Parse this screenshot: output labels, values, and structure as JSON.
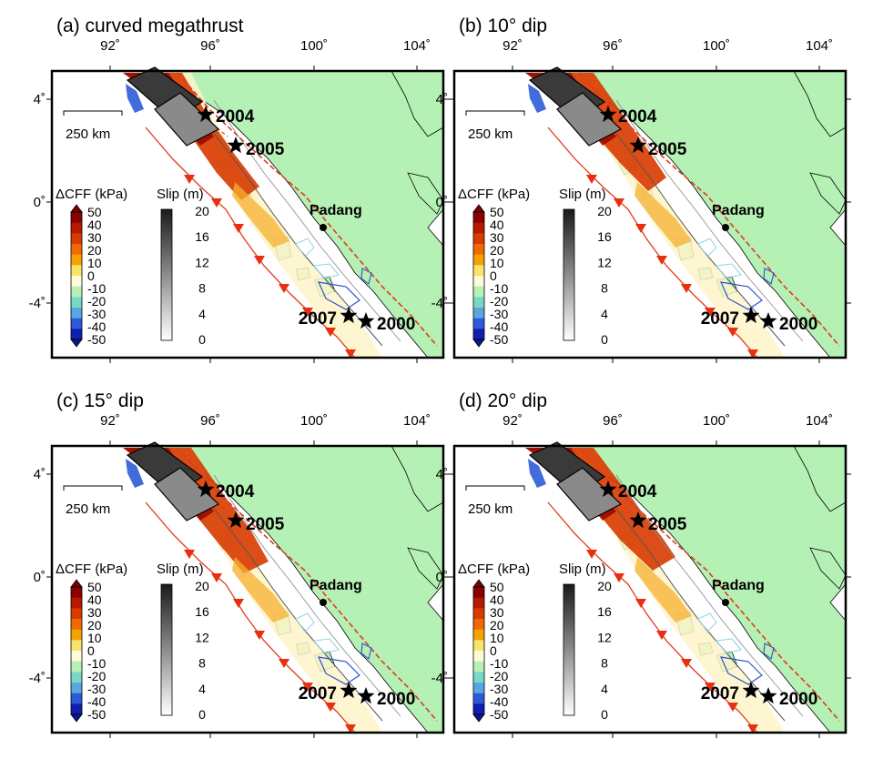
{
  "panels": [
    {
      "id": "a",
      "title": "(a) curved megathrust",
      "style": "curved"
    },
    {
      "id": "b",
      "title": "(b) 10° dip",
      "style": "dip10"
    },
    {
      "id": "c",
      "title": "(c) 15° dip",
      "style": "dip15"
    },
    {
      "id": "d",
      "title": "(d) 20° dip",
      "style": "dip20"
    }
  ],
  "lon_ticks": [
    "92˚",
    "96˚",
    "100˚",
    "104˚"
  ],
  "lat_ticks": [
    "4˚",
    "0˚",
    "-4˚"
  ],
  "scale_bar_label": "250 km",
  "cff_colorbar": {
    "title": "ΔCFF (kPa)",
    "labels": [
      "50",
      "40",
      "30",
      "20",
      "10",
      "0",
      "-10",
      "-20",
      "-30",
      "-40",
      "-50"
    ],
    "colors": [
      "#8b0000",
      "#b51a00",
      "#d93a00",
      "#ef6a00",
      "#f5a300",
      "#fbe36a",
      "#fdfbd8",
      "#b9f0b6",
      "#78d8c8",
      "#5aa6e0",
      "#2d5bd8",
      "#0f1fb0"
    ]
  },
  "slip_colorbar": {
    "title": "Slip (m)",
    "labels": [
      "20",
      "16",
      "12",
      "8",
      "4",
      "0"
    ]
  },
  "events": [
    {
      "label": "2004",
      "lon": 95.8,
      "lat": 3.3
    },
    {
      "label": "2005",
      "lon": 97.1,
      "lat": 2.1
    },
    {
      "label": "2007",
      "lon": 101.4,
      "lat": -4.5
    },
    {
      "label": "2000",
      "lon": 102.1,
      "lat": -4.7
    }
  ],
  "city": {
    "label": "Padang",
    "lon": 100.4,
    "lat": -0.9
  },
  "colors": {
    "land": "#b5f0b5",
    "fault": "#e03c1e",
    "trench_teeth": "#e83010",
    "contour_light": "#8fd3e8",
    "contour_dark": "#3050d0"
  }
}
